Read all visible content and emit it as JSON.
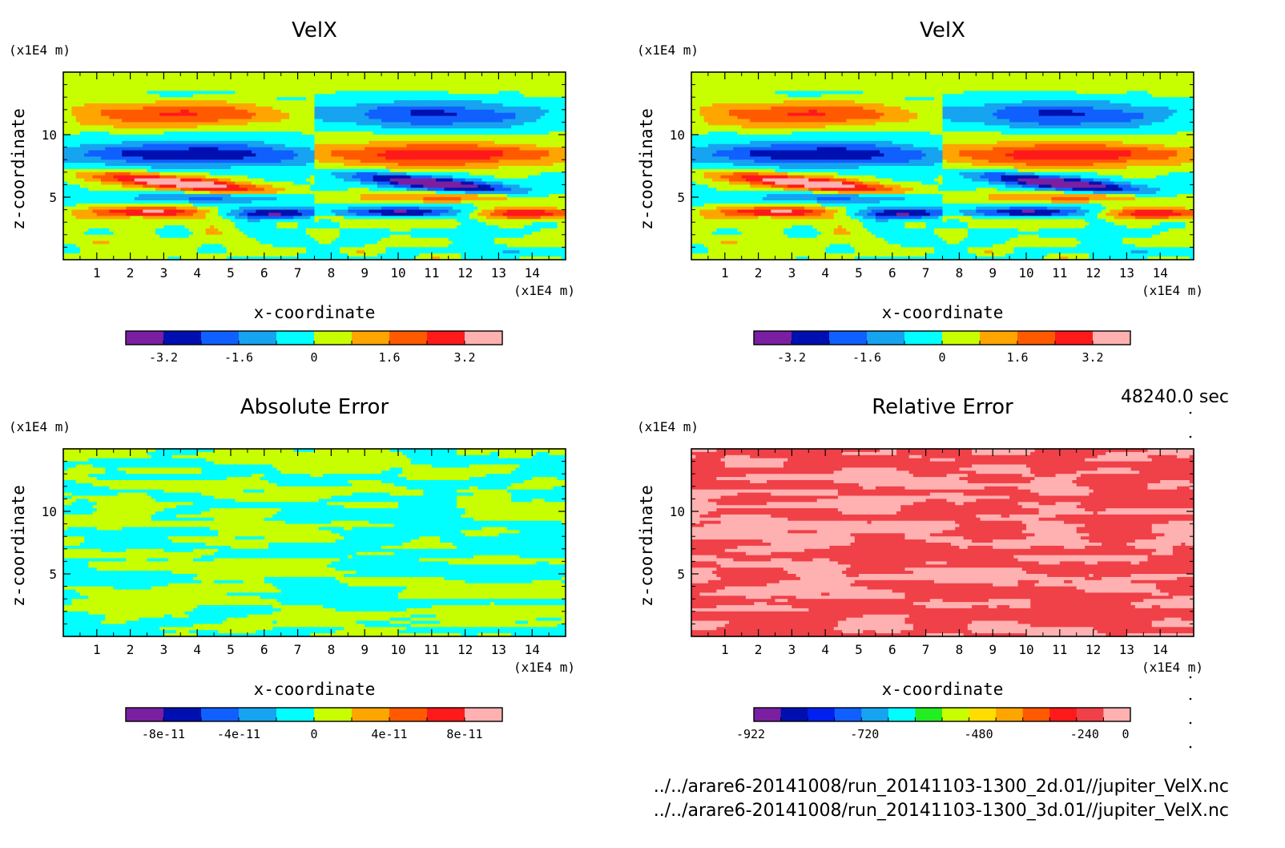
{
  "time_label": "48240.0 sec",
  "files": [
    "../../arare6-20141008/run_20141103-1300_2d.01//jupiter_VelX.nc",
    "../../arare6-20141008/run_20141103-1300_3d.01//jupiter_VelX.nc"
  ],
  "chart_data": [
    {
      "type": "heatmap",
      "title": "VelX",
      "xlabel": "x-coordinate",
      "ylabel": "z-coordinate",
      "x_unit": "(x1E4 m)",
      "y_unit": "(x1E4 m)",
      "xlim": [
        0,
        15
      ],
      "ylim": [
        0,
        15
      ],
      "xticks": [
        "1",
        "2",
        "3",
        "4",
        "5",
        "6",
        "7",
        "8",
        "9",
        "10",
        "11",
        "12",
        "13",
        "14"
      ],
      "yticks": [
        "5",
        "10"
      ],
      "colorbar": {
        "colors": [
          "#7b1fa2",
          "#0010b0",
          "#1060ff",
          "#16a3f0",
          "#00ffff",
          "#c8ff00",
          "#ffa500",
          "#ff5a00",
          "#ff1a1a",
          "#ffb0b0"
        ],
        "tick_labels": [
          "-3.2",
          "-1.6",
          "0",
          "1.6",
          "3.2"
        ]
      }
    },
    {
      "type": "heatmap",
      "title": "VelX",
      "xlabel": "x-coordinate",
      "ylabel": "z-coordinate",
      "x_unit": "(x1E4 m)",
      "y_unit": "(x1E4 m)",
      "xlim": [
        0,
        15
      ],
      "ylim": [
        0,
        15
      ],
      "xticks": [
        "1",
        "2",
        "3",
        "4",
        "5",
        "6",
        "7",
        "8",
        "9",
        "10",
        "11",
        "12",
        "13",
        "14"
      ],
      "yticks": [
        "5",
        "10"
      ],
      "colorbar": {
        "colors": [
          "#7b1fa2",
          "#0010b0",
          "#1060ff",
          "#16a3f0",
          "#00ffff",
          "#c8ff00",
          "#ffa500",
          "#ff5a00",
          "#ff1a1a",
          "#ffb0b0"
        ],
        "tick_labels": [
          "-3.2",
          "-1.6",
          "0",
          "1.6",
          "3.2"
        ]
      }
    },
    {
      "type": "heatmap",
      "title": "Absolute Error",
      "xlabel": "x-coordinate",
      "ylabel": "z-coordinate",
      "x_unit": "(x1E4 m)",
      "y_unit": "(x1E4 m)",
      "xlim": [
        0,
        15
      ],
      "ylim": [
        0,
        15
      ],
      "xticks": [
        "1",
        "2",
        "3",
        "4",
        "5",
        "6",
        "7",
        "8",
        "9",
        "10",
        "11",
        "12",
        "13",
        "14"
      ],
      "yticks": [
        "5",
        "10"
      ],
      "colorbar": {
        "colors": [
          "#7b1fa2",
          "#0010b0",
          "#1060ff",
          "#16a3f0",
          "#00ffff",
          "#c8ff00",
          "#ffa500",
          "#ff5a00",
          "#ff1a1a",
          "#ffb0b0"
        ],
        "tick_labels": [
          "-8e-11",
          "-4e-11",
          "0",
          "4e-11",
          "8e-11"
        ]
      }
    },
    {
      "type": "heatmap",
      "title": "Relative Error",
      "xlabel": "x-coordinate",
      "ylabel": "z-coordinate",
      "x_unit": "(x1E4 m)",
      "y_unit": "(x1E4 m)",
      "xlim": [
        0,
        15
      ],
      "ylim": [
        0,
        15
      ],
      "xticks": [
        "1",
        "2",
        "3",
        "4",
        "5",
        "6",
        "7",
        "8",
        "9",
        "10",
        "11",
        "12",
        "13",
        "14"
      ],
      "yticks": [
        "5",
        "10"
      ],
      "colorbar": {
        "colors": [
          "#7b1fa2",
          "#0010b0",
          "#0020f0",
          "#1060ff",
          "#16a3f0",
          "#00ffff",
          "#22ee22",
          "#c8ff00",
          "#ffdd00",
          "#ffa500",
          "#ff5a00",
          "#ff1a1a",
          "#f04048",
          "#ffb0b0"
        ],
        "tick_labels": [
          "-922",
          "-720",
          "-480",
          "-240",
          "0"
        ]
      }
    }
  ],
  "palettes": {
    "velx": [
      "#7b1fa2",
      "#0010b0",
      "#1060ff",
      "#16a3f0",
      "#00ffff",
      "#c8ff00",
      "#ffa500",
      "#ff5a00",
      "#ff1a1a",
      "#ffb0b0"
    ],
    "abs_error": [
      "#00ffff",
      "#c8ff00"
    ],
    "rel_error": [
      "#f04048",
      "#ffb0b0"
    ]
  }
}
